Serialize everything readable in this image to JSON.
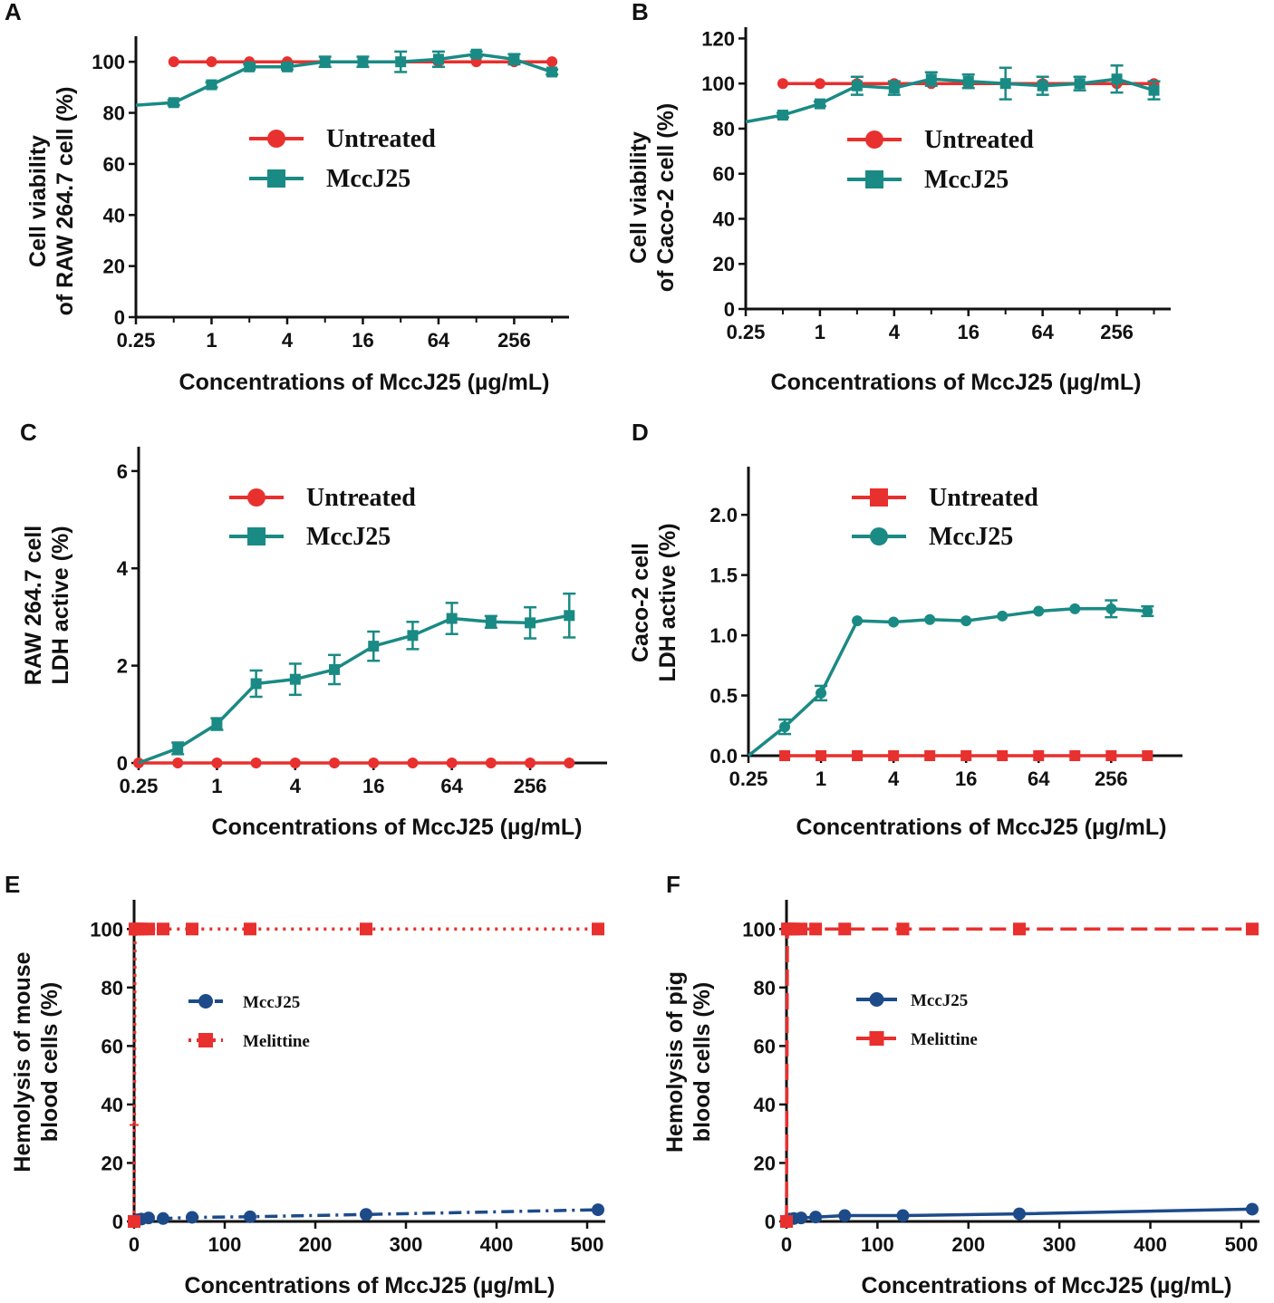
{
  "colors": {
    "untreated": "#e8302e",
    "mccj25_teal": "#1a8a84",
    "mccj25_blue": "#1d4b8a",
    "melittine": "#e8302e",
    "axis": "#111111"
  },
  "chart_data": [
    {
      "panel": "A",
      "type": "line",
      "title": "",
      "xlabel": "Concentrations of MccJ25 (µg/mL)",
      "ylabel_lines": [
        "Cell viability",
        "of RAW 264.7 cell (%)"
      ],
      "xscale": "log2",
      "xlim": [
        0.25,
        700
      ],
      "ylim": [
        0,
        110
      ],
      "xticks": [
        0.25,
        1,
        4,
        16,
        64,
        256
      ],
      "xtick_labels": [
        "0.25",
        "1",
        "4",
        "16",
        "64",
        "256"
      ],
      "yticks": [
        0,
        20,
        40,
        60,
        80,
        100
      ],
      "ytick_labels": [
        "0",
        "20",
        "40",
        "60",
        "80",
        "100"
      ],
      "legend": [
        "Untreated",
        "MccJ25"
      ],
      "legend_placement": "center",
      "series": [
        {
          "name": "Untreated",
          "marker": "circle",
          "x": [
            0.5,
            1,
            2,
            4,
            8,
            16,
            32,
            64,
            128,
            256,
            512
          ],
          "values": [
            100,
            100,
            100,
            100,
            100,
            100,
            100,
            100,
            100,
            100,
            100
          ]
        },
        {
          "name": "MccJ25",
          "marker": "square",
          "x": [
            0.25,
            0.5,
            1,
            2,
            4,
            8,
            16,
            32,
            64,
            128,
            256,
            512
          ],
          "values": [
            83,
            84,
            91,
            98,
            98,
            100,
            100,
            100,
            101,
            103,
            101,
            96
          ],
          "errors": [
            0,
            1,
            1,
            1,
            1,
            2,
            2,
            4,
            3,
            1,
            2,
            1
          ]
        }
      ]
    },
    {
      "panel": "B",
      "type": "line",
      "title": "",
      "xlabel": "Concentrations of MccJ25 (µg/mL)",
      "ylabel_lines": [
        "Cell viability",
        "of Caco-2 cell (%)"
      ],
      "xscale": "log2",
      "xlim": [
        0.25,
        700
      ],
      "ylim": [
        0,
        125
      ],
      "xticks": [
        0.25,
        1,
        4,
        16,
        64,
        256
      ],
      "xtick_labels": [
        "0.25",
        "1",
        "4",
        "16",
        "64",
        "256"
      ],
      "yticks": [
        0,
        20,
        40,
        60,
        80,
        100,
        120
      ],
      "ytick_labels": [
        "0",
        "20",
        "40",
        "60",
        "80",
        "100",
        "120"
      ],
      "legend": [
        "Untreated",
        "MccJ25"
      ],
      "legend_placement": "center",
      "series": [
        {
          "name": "Untreated",
          "marker": "circle",
          "x": [
            0.5,
            1,
            2,
            4,
            8,
            16,
            32,
            64,
            128,
            256,
            512
          ],
          "values": [
            100,
            100,
            100,
            100,
            100,
            100,
            100,
            100,
            100,
            100,
            100
          ]
        },
        {
          "name": "MccJ25",
          "marker": "square",
          "x": [
            0.25,
            0.5,
            1,
            2,
            4,
            8,
            16,
            32,
            64,
            128,
            256,
            512
          ],
          "values": [
            83,
            86,
            91,
            99,
            98,
            102,
            101,
            100,
            99,
            100,
            102,
            97
          ],
          "errors": [
            0,
            1,
            1,
            4,
            3,
            3,
            3,
            7,
            4,
            3,
            6,
            4
          ]
        }
      ]
    },
    {
      "panel": "C",
      "type": "line",
      "title": "",
      "xlabel": "Concentrations of MccJ25 (µg/mL)",
      "ylabel_lines": [
        "RAW 264.7 cell",
        "LDH active (%)"
      ],
      "xscale": "log2",
      "xlim": [
        0.25,
        1000
      ],
      "ylim": [
        0,
        6.5
      ],
      "xticks": [
        0.25,
        1,
        4,
        16,
        64,
        256
      ],
      "xtick_labels": [
        "0.25",
        "1",
        "4",
        "16",
        "64",
        "256"
      ],
      "yticks": [
        0,
        2,
        4,
        6
      ],
      "ytick_labels": [
        "0",
        "2",
        "4",
        "6"
      ],
      "legend": [
        "Untreated",
        "MccJ25"
      ],
      "legend_placement": "top-center",
      "series": [
        {
          "name": "Untreated",
          "marker": "circle",
          "x": [
            0.25,
            0.5,
            1,
            2,
            4,
            8,
            16,
            32,
            64,
            128,
            256,
            512
          ],
          "values": [
            0,
            0,
            0,
            0,
            0,
            0,
            0,
            0,
            0,
            0,
            0,
            0
          ]
        },
        {
          "name": "MccJ25",
          "marker": "square",
          "x": [
            0.25,
            0.5,
            1,
            2,
            4,
            8,
            16,
            32,
            64,
            128,
            256,
            512
          ],
          "values": [
            0,
            0.3,
            0.8,
            1.63,
            1.72,
            1.92,
            2.4,
            2.62,
            2.97,
            2.9,
            2.88,
            3.03
          ],
          "errors": [
            0,
            0.12,
            0.12,
            0.27,
            0.32,
            0.3,
            0.3,
            0.28,
            0.32,
            0.12,
            0.32,
            0.45
          ]
        }
      ]
    },
    {
      "panel": "D",
      "type": "line",
      "title": "",
      "xlabel": "Concentrations of MccJ25 (µg/mL)",
      "ylabel_lines": [
        "Caco-2 cell",
        "LDH active (%)"
      ],
      "xscale": "log2",
      "xlim": [
        0.25,
        1000
      ],
      "ylim": [
        0,
        2.4
      ],
      "xticks": [
        0.25,
        1,
        4,
        16,
        64,
        256
      ],
      "xtick_labels": [
        "0.25",
        "1",
        "4",
        "16",
        "64",
        "256"
      ],
      "yticks": [
        0,
        0.5,
        1.0,
        1.5,
        2.0
      ],
      "ytick_labels": [
        "0.0",
        "0.5",
        "1.0",
        "1.5",
        "2.0"
      ],
      "legend": [
        "Untreated",
        "MccJ25"
      ],
      "legend_placement": "top-center",
      "series": [
        {
          "name": "Untreated",
          "marker": "square",
          "x": [
            0.5,
            1,
            2,
            4,
            8,
            16,
            32,
            64,
            128,
            256,
            512
          ],
          "values": [
            0,
            0,
            0,
            0,
            0,
            0,
            0,
            0,
            0,
            0,
            0
          ]
        },
        {
          "name": "MccJ25",
          "marker": "circle",
          "x": [
            0.25,
            0.5,
            1,
            2,
            4,
            8,
            16,
            32,
            64,
            128,
            256,
            512
          ],
          "values": [
            0,
            0.24,
            0.52,
            1.12,
            1.11,
            1.13,
            1.12,
            1.16,
            1.2,
            1.22,
            1.22,
            1.2
          ],
          "errors": [
            0,
            0.06,
            0.06,
            0,
            0,
            0,
            0,
            0,
            0,
            0,
            0.07,
            0.04
          ]
        }
      ]
    },
    {
      "panel": "E",
      "type": "line",
      "title": "",
      "xlabel": "Concentrations of MccJ25 (µg/mL)",
      "ylabel_lines": [
        "Hemolysis of mouse",
        "blood cells (%)"
      ],
      "xscale": "linear",
      "xlim": [
        0,
        520
      ],
      "ylim": [
        0,
        110
      ],
      "xticks": [
        0,
        100,
        200,
        300,
        400,
        500
      ],
      "xtick_labels": [
        "0",
        "100",
        "200",
        "300",
        "400",
        "500"
      ],
      "yticks": [
        0,
        20,
        40,
        60,
        80,
        100
      ],
      "ytick_labels": [
        "0",
        "20",
        "40",
        "60",
        "80",
        "100"
      ],
      "legend": [
        "MccJ25",
        "Melittine"
      ],
      "legend_placement": "center-left",
      "series": [
        {
          "name": "MccJ25",
          "marker": "circle",
          "line": "dash-dot",
          "x": [
            0,
            1,
            2,
            4,
            8,
            16,
            32,
            64,
            128,
            256,
            512
          ],
          "values": [
            0,
            0.2,
            0.4,
            0.6,
            0.8,
            1.2,
            1.0,
            1.4,
            1.6,
            2.4,
            4.0
          ]
        },
        {
          "name": "Melittine",
          "marker": "square",
          "line": "dotted",
          "x": [
            0,
            1,
            2,
            4,
            8,
            16,
            32,
            64,
            128,
            256,
            512
          ],
          "values": [
            0,
            100,
            100,
            100,
            100,
            100,
            100,
            100,
            100,
            100,
            100
          ]
        }
      ]
    },
    {
      "panel": "F",
      "type": "line",
      "title": "",
      "xlabel": "Concentrations of MccJ25 (µg/mL)",
      "ylabel_lines": [
        "Hemolysis of pig",
        "blood cells (%)"
      ],
      "xscale": "linear",
      "xlim": [
        0,
        520
      ],
      "ylim": [
        0,
        110
      ],
      "xticks": [
        0,
        100,
        200,
        300,
        400,
        500
      ],
      "xtick_labels": [
        "0",
        "100",
        "200",
        "300",
        "400",
        "500"
      ],
      "yticks": [
        0,
        20,
        40,
        60,
        80,
        100
      ],
      "ytick_labels": [
        "0",
        "20",
        "40",
        "60",
        "80",
        "100"
      ],
      "legend": [
        "MccJ25",
        "Melittine"
      ],
      "legend_placement": "center-left",
      "series": [
        {
          "name": "MccJ25",
          "marker": "circle",
          "line": "solid",
          "x": [
            0,
            1,
            2,
            4,
            8,
            16,
            32,
            64,
            128,
            256,
            512
          ],
          "values": [
            0,
            0.3,
            0.5,
            0.8,
            1.0,
            1.2,
            1.5,
            2.0,
            2.0,
            2.6,
            4.2
          ]
        },
        {
          "name": "Melittine",
          "marker": "square",
          "line": "dashed",
          "x": [
            0,
            1,
            2,
            4,
            8,
            16,
            32,
            64,
            128,
            256,
            512
          ],
          "values": [
            0,
            100,
            100,
            100,
            100,
            100,
            100,
            100,
            100,
            100,
            100
          ]
        }
      ]
    }
  ]
}
